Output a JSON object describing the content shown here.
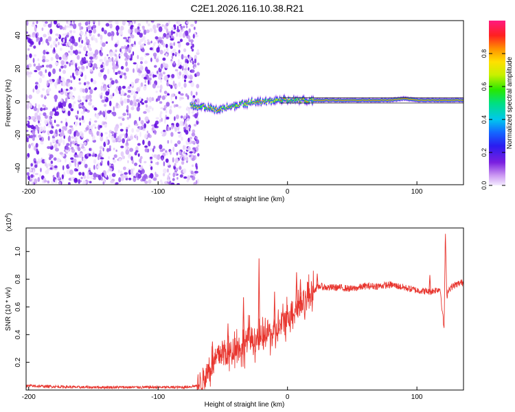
{
  "title": "C2E1.2026.116.10.38.R21",
  "chart_data": [
    {
      "type": "heatmap",
      "title": "C2E1.2026.116.10.38.R21",
      "xlabel": "Height of straight line (km)",
      "ylabel": "Frequency (Hz)",
      "xlim": [
        -202,
        136
      ],
      "ylim": [
        -50,
        49
      ],
      "x_ticks": [
        -200,
        -100,
        0,
        100
      ],
      "x_tick_labels": [
        "-200",
        "-100",
        "0",
        "100"
      ],
      "y_ticks": [
        -40,
        -20,
        0,
        20,
        40
      ],
      "y_tick_labels": [
        "-40",
        "-20",
        "0",
        "20",
        "40"
      ],
      "noise_region_x": [
        -202,
        -72
      ],
      "signal_ridge": {
        "x": [
          -75,
          -65,
          -55,
          -45,
          -35,
          -25,
          -15,
          -5,
          5,
          20,
          40,
          60,
          80,
          90,
          100,
          120,
          136
        ],
        "frequency": [
          -2,
          -3,
          -5,
          -3,
          -1,
          0,
          0,
          1,
          1,
          1,
          1,
          1,
          1,
          2,
          1,
          1,
          1
        ]
      },
      "colorbar": {
        "label": "Normalized spectral amplitude",
        "range": [
          0.0,
          1.0
        ],
        "ticks": [
          0.0,
          0.2,
          0.4,
          0.6,
          0.8
        ],
        "tick_labels": [
          "0.0",
          "0.2",
          "0.4",
          "0.6",
          "0.8"
        ]
      }
    },
    {
      "type": "line",
      "xlabel": "Height of straight line (km)",
      "ylabel": "SNR (10 * v/v)",
      "exponent_label": "(x10",
      "exponent_power": "4",
      "exponent_close": ")",
      "xlim": [
        -202,
        136
      ],
      "ylim": [
        0.0,
        1.17
      ],
      "x_ticks": [
        -200,
        -100,
        0,
        100
      ],
      "x_tick_labels": [
        "-200",
        "-100",
        "0",
        "100"
      ],
      "y_ticks": [
        0.2,
        0.4,
        0.6,
        0.8,
        1.0
      ],
      "y_tick_labels": [
        "0.2",
        "0.4",
        "0.6",
        "0.8",
        "1.0"
      ],
      "color": "#e8352e",
      "series": [
        {
          "name": "SNR",
          "x": [
            -202,
            -180,
            -160,
            -140,
            -120,
            -100,
            -80,
            -70,
            -65,
            -60,
            -55,
            -50,
            -45,
            -40,
            -35,
            -30,
            -25,
            -20,
            -15,
            -10,
            -5,
            0,
            5,
            10,
            15,
            20,
            25,
            30,
            40,
            50,
            60,
            70,
            80,
            90,
            100,
            110,
            118,
            121,
            122,
            123,
            124,
            126,
            130,
            136
          ],
          "y": [
            0.03,
            0.025,
            0.02,
            0.02,
            0.02,
            0.02,
            0.02,
            0.03,
            0.08,
            0.16,
            0.22,
            0.28,
            0.25,
            0.33,
            0.3,
            0.38,
            0.36,
            0.35,
            0.42,
            0.4,
            0.46,
            0.54,
            0.58,
            0.62,
            0.66,
            0.72,
            0.75,
            0.74,
            0.74,
            0.73,
            0.75,
            0.75,
            0.76,
            0.74,
            0.72,
            0.71,
            0.73,
            0.44,
            1.17,
            0.66,
            0.72,
            0.74,
            0.76,
            0.78
          ]
        }
      ],
      "spikes": [
        {
          "x": -58,
          "y": 0.35
        },
        {
          "x": -46,
          "y": 0.48
        },
        {
          "x": -34,
          "y": 0.67
        },
        {
          "x": -22,
          "y": 0.95
        },
        {
          "x": -10,
          "y": 0.71
        },
        {
          "x": 7,
          "y": 0.85
        },
        {
          "x": 10,
          "y": 0.8
        },
        {
          "x": 23,
          "y": 0.84
        },
        {
          "x": 110,
          "y": 0.83
        }
      ]
    }
  ]
}
